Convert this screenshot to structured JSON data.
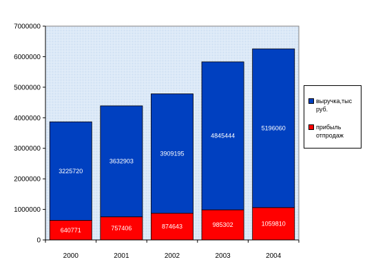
{
  "chart_data": {
    "type": "bar",
    "stacked": true,
    "categories": [
      "2000",
      "2001",
      "2002",
      "2003",
      "2004"
    ],
    "series": [
      {
        "name": "прибыль отпродаж",
        "color": "#ff0000",
        "values": [
          640771,
          757406,
          874643,
          985302,
          1059810
        ]
      },
      {
        "name": "выручка,тыс руб.",
        "color": "#0040c0",
        "values": [
          3225720,
          3632903,
          3909195,
          4845444,
          5196060
        ]
      }
    ],
    "ylim": [
      0,
      7000000
    ],
    "yticks": [
      "0",
      "1000000",
      "2000000",
      "3000000",
      "4000000",
      "5000000",
      "6000000",
      "7000000"
    ],
    "grid": false,
    "legend": "right",
    "plot_background": "#dce9f7"
  },
  "legend": {
    "items": [
      {
        "label": "выручка,тыс руб.",
        "color": "#0040c0"
      },
      {
        "label": "прибыль отпродаж",
        "color": "#ff0000"
      }
    ]
  }
}
